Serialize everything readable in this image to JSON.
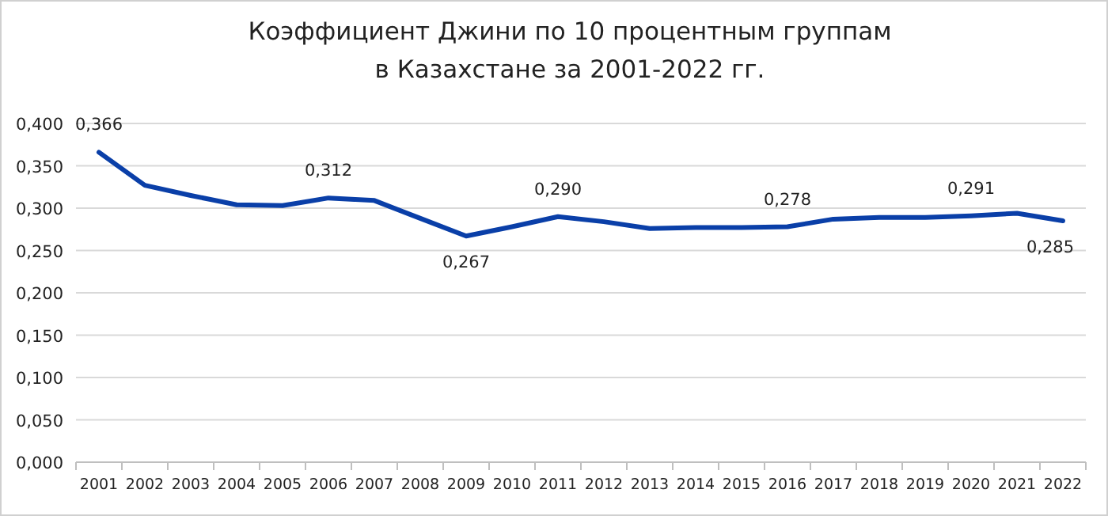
{
  "chart_data": {
    "type": "line",
    "title": "Коэффициент Джини по 10 процентным группам\nв Казахстане за 2001-2022 гг.",
    "categories": [
      "2001",
      "2002",
      "2003",
      "2004",
      "2005",
      "2006",
      "2007",
      "2008",
      "2009",
      "2010",
      "2011",
      "2012",
      "2013",
      "2014",
      "2015",
      "2016",
      "2017",
      "2018",
      "2019",
      "2020",
      "2021",
      "2022"
    ],
    "series": [
      {
        "color": "#0a3fa8",
        "values": [
          0.366,
          0.327,
          0.315,
          0.304,
          0.303,
          0.312,
          0.309,
          0.288,
          0.267,
          0.278,
          0.29,
          0.284,
          0.276,
          0.277,
          0.277,
          0.278,
          0.287,
          0.289,
          0.289,
          0.291,
          0.294,
          0.285
        ],
        "value_labels": [
          "0,366",
          null,
          null,
          null,
          null,
          "0,312",
          null,
          null,
          "0,267",
          null,
          "0,290",
          null,
          null,
          null,
          null,
          "0,278",
          null,
          null,
          null,
          "0,291",
          null,
          "0,285"
        ]
      }
    ],
    "ylim": [
      0,
      0.4
    ],
    "yticks": [
      {
        "value": 0,
        "label": "0,000"
      },
      {
        "value": 0.05,
        "label": "0,050"
      },
      {
        "value": 0.1,
        "label": "0,100"
      },
      {
        "value": 0.15,
        "label": "0,150"
      },
      {
        "value": 0.2,
        "label": "0,200"
      },
      {
        "value": 0.25,
        "label": "0,250"
      },
      {
        "value": 0.3,
        "label": "0,300"
      },
      {
        "value": 0.35,
        "label": "0,350"
      },
      {
        "value": 0.4,
        "label": "0,400"
      }
    ],
    "grid": "y",
    "marker": "none",
    "line_style": "solid"
  }
}
